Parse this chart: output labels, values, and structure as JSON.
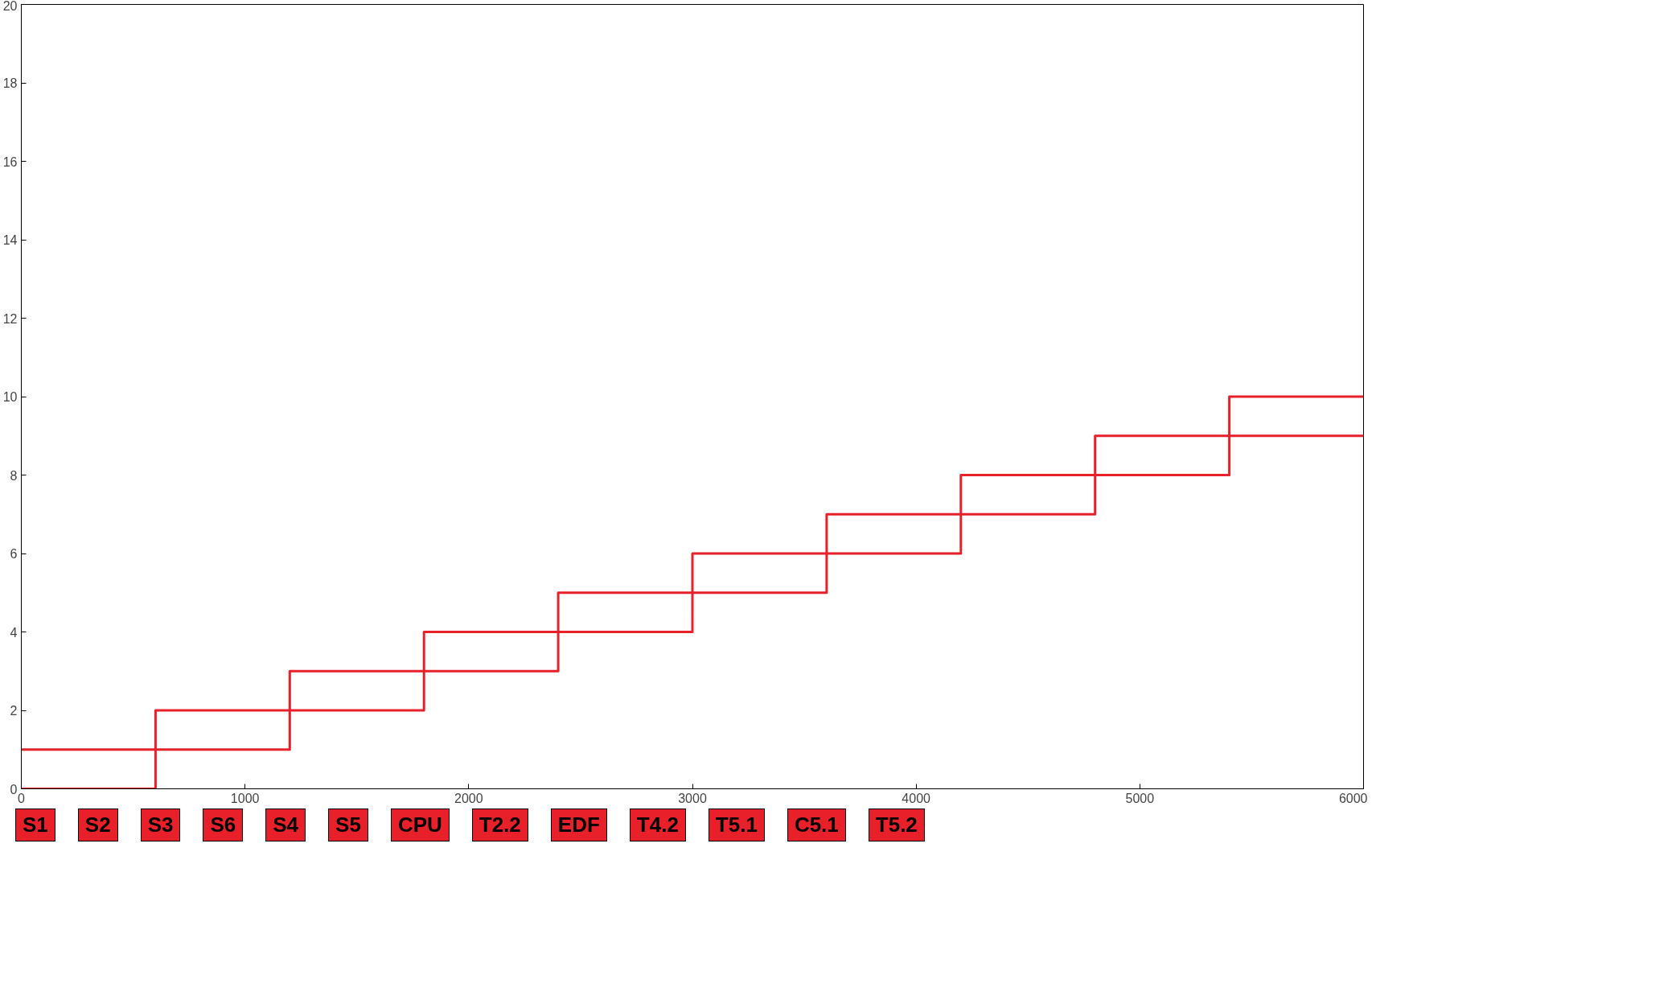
{
  "chart_data": {
    "type": "step",
    "series": [
      {
        "color": "#e8202a",
        "x": [
          0,
          1200,
          2400,
          3600,
          4800,
          6000
        ],
        "values": [
          1,
          3,
          5,
          7,
          9,
          9
        ]
      },
      {
        "color": "#e8202a",
        "x": [
          0,
          600,
          1800,
          3000,
          4200,
          5400,
          6000
        ],
        "values": [
          0,
          2,
          4,
          6,
          8,
          10,
          10
        ]
      }
    ],
    "xlim": [
      0,
      6000
    ],
    "xticks": [
      0,
      1000,
      2000,
      3000,
      4000,
      5000,
      6000
    ],
    "ylim": [
      0,
      20
    ],
    "yticks": [
      0,
      2,
      4,
      6,
      8,
      10,
      12,
      14,
      16,
      18,
      20
    ],
    "grid": false,
    "annotations": [
      "S1",
      "S2",
      "S3",
      "S6",
      "S4",
      "S5",
      "CPU",
      "T2.2",
      "EDF",
      "T4.2",
      "T5.1",
      "C5.1",
      "T5.2"
    ]
  }
}
